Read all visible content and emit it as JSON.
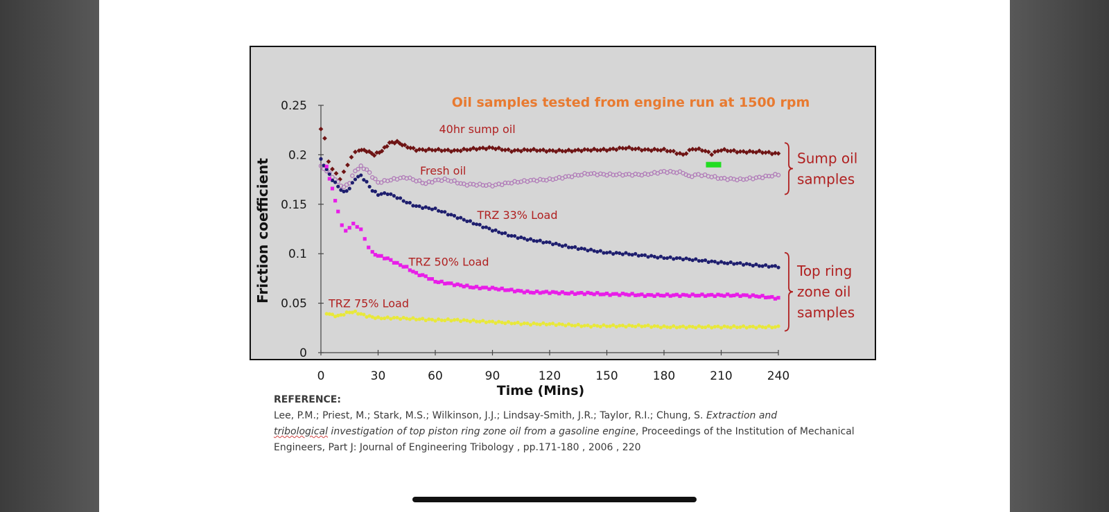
{
  "chart_data": {
    "type": "scatter",
    "title": "Oil samples tested from engine run at 1500 rpm",
    "xlabel": "Time (Mins)",
    "ylabel": "Friction coefficient",
    "xlim": [
      0,
      240
    ],
    "ylim": [
      0,
      0.25
    ],
    "x_ticks": [
      "0",
      "30",
      "60",
      "90",
      "120",
      "150",
      "180",
      "210",
      "240"
    ],
    "y_ticks": [
      "0",
      "0.05",
      "0.1",
      "0.15",
      "0.2",
      "0.25"
    ],
    "grid": false,
    "series": [
      {
        "name": "40hr sump oil",
        "color": "#6e1414",
        "marker": "diamond",
        "points": [
          [
            0,
            0.226
          ],
          [
            2,
            0.216
          ],
          [
            4,
            0.194
          ],
          [
            6,
            0.185
          ],
          [
            8,
            0.181
          ],
          [
            10,
            0.176
          ],
          [
            12,
            0.182
          ],
          [
            14,
            0.19
          ],
          [
            16,
            0.198
          ],
          [
            18,
            0.202
          ],
          [
            20,
            0.205
          ],
          [
            24,
            0.204
          ],
          [
            28,
            0.2
          ],
          [
            32,
            0.204
          ],
          [
            36,
            0.212
          ],
          [
            40,
            0.213
          ],
          [
            44,
            0.209
          ],
          [
            50,
            0.205
          ],
          [
            60,
            0.205
          ],
          [
            70,
            0.204
          ],
          [
            80,
            0.206
          ],
          [
            90,
            0.207
          ],
          [
            100,
            0.204
          ],
          [
            110,
            0.205
          ],
          [
            120,
            0.204
          ],
          [
            130,
            0.204
          ],
          [
            140,
            0.205
          ],
          [
            150,
            0.205
          ],
          [
            160,
            0.207
          ],
          [
            170,
            0.205
          ],
          [
            180,
            0.205
          ],
          [
            185,
            0.203
          ],
          [
            190,
            0.2
          ],
          [
            195,
            0.206
          ],
          [
            200,
            0.205
          ],
          [
            205,
            0.201
          ],
          [
            210,
            0.205
          ],
          [
            220,
            0.203
          ],
          [
            230,
            0.203
          ],
          [
            240,
            0.201
          ]
        ]
      },
      {
        "name": "Fresh oil",
        "color": "#b07ab8",
        "marker": "x",
        "points": [
          [
            0,
            0.188
          ],
          [
            3,
            0.184
          ],
          [
            6,
            0.178
          ],
          [
            9,
            0.172
          ],
          [
            12,
            0.167
          ],
          [
            15,
            0.172
          ],
          [
            18,
            0.184
          ],
          [
            21,
            0.188
          ],
          [
            24,
            0.185
          ],
          [
            27,
            0.178
          ],
          [
            30,
            0.172
          ],
          [
            35,
            0.174
          ],
          [
            40,
            0.176
          ],
          [
            45,
            0.177
          ],
          [
            50,
            0.174
          ],
          [
            55,
            0.171
          ],
          [
            60,
            0.174
          ],
          [
            65,
            0.175
          ],
          [
            70,
            0.173
          ],
          [
            75,
            0.17
          ],
          [
            80,
            0.17
          ],
          [
            90,
            0.169
          ],
          [
            100,
            0.172
          ],
          [
            110,
            0.174
          ],
          [
            120,
            0.175
          ],
          [
            130,
            0.178
          ],
          [
            140,
            0.181
          ],
          [
            150,
            0.18
          ],
          [
            160,
            0.18
          ],
          [
            170,
            0.18
          ],
          [
            180,
            0.183
          ],
          [
            190,
            0.182
          ],
          [
            193,
            0.178
          ],
          [
            198,
            0.18
          ],
          [
            205,
            0.178
          ],
          [
            210,
            0.176
          ],
          [
            220,
            0.175
          ],
          [
            230,
            0.177
          ],
          [
            240,
            0.18
          ]
        ]
      },
      {
        "name": "TRZ 33% Load",
        "color": "#1e1e6e",
        "marker": "circle",
        "points": [
          [
            0,
            0.195
          ],
          [
            3,
            0.185
          ],
          [
            6,
            0.175
          ],
          [
            9,
            0.168
          ],
          [
            12,
            0.162
          ],
          [
            15,
            0.166
          ],
          [
            18,
            0.176
          ],
          [
            21,
            0.179
          ],
          [
            24,
            0.172
          ],
          [
            27,
            0.164
          ],
          [
            30,
            0.16
          ],
          [
            35,
            0.161
          ],
          [
            40,
            0.157
          ],
          [
            45,
            0.152
          ],
          [
            50,
            0.148
          ],
          [
            60,
            0.145
          ],
          [
            70,
            0.138
          ],
          [
            80,
            0.131
          ],
          [
            90,
            0.124
          ],
          [
            100,
            0.118
          ],
          [
            110,
            0.114
          ],
          [
            120,
            0.111
          ],
          [
            130,
            0.107
          ],
          [
            140,
            0.104
          ],
          [
            150,
            0.101
          ],
          [
            160,
            0.1
          ],
          [
            170,
            0.098
          ],
          [
            180,
            0.096
          ],
          [
            190,
            0.095
          ],
          [
            200,
            0.093
          ],
          [
            210,
            0.091
          ],
          [
            220,
            0.09
          ],
          [
            230,
            0.088
          ],
          [
            240,
            0.087
          ]
        ]
      },
      {
        "name": "TRZ 50% Load",
        "color": "#e81ee8",
        "marker": "square",
        "points": [
          [
            3,
            0.188
          ],
          [
            6,
            0.165
          ],
          [
            9,
            0.143
          ],
          [
            11,
            0.128
          ],
          [
            13,
            0.124
          ],
          [
            15,
            0.126
          ],
          [
            17,
            0.13
          ],
          [
            19,
            0.128
          ],
          [
            21,
            0.124
          ],
          [
            23,
            0.115
          ],
          [
            25,
            0.107
          ],
          [
            27,
            0.101
          ],
          [
            30,
            0.098
          ],
          [
            35,
            0.095
          ],
          [
            40,
            0.09
          ],
          [
            45,
            0.086
          ],
          [
            50,
            0.08
          ],
          [
            55,
            0.077
          ],
          [
            60,
            0.072
          ],
          [
            70,
            0.069
          ],
          [
            80,
            0.066
          ],
          [
            90,
            0.065
          ],
          [
            100,
            0.063
          ],
          [
            110,
            0.061
          ],
          [
            120,
            0.061
          ],
          [
            130,
            0.06
          ],
          [
            140,
            0.06
          ],
          [
            150,
            0.059
          ],
          [
            160,
            0.059
          ],
          [
            170,
            0.058
          ],
          [
            180,
            0.058
          ],
          [
            190,
            0.058
          ],
          [
            200,
            0.058
          ],
          [
            210,
            0.058
          ],
          [
            220,
            0.058
          ],
          [
            230,
            0.057
          ],
          [
            240,
            0.055
          ]
        ]
      },
      {
        "name": "TRZ 75% Load",
        "color": "#e8e83a",
        "marker": "circle",
        "points": [
          [
            3,
            0.04
          ],
          [
            6,
            0.038
          ],
          [
            9,
            0.037
          ],
          [
            12,
            0.039
          ],
          [
            15,
            0.041
          ],
          [
            18,
            0.041
          ],
          [
            21,
            0.039
          ],
          [
            24,
            0.037
          ],
          [
            27,
            0.036
          ],
          [
            30,
            0.035
          ],
          [
            40,
            0.035
          ],
          [
            50,
            0.034
          ],
          [
            60,
            0.033
          ],
          [
            70,
            0.033
          ],
          [
            80,
            0.032
          ],
          [
            90,
            0.031
          ],
          [
            100,
            0.03
          ],
          [
            110,
            0.029
          ],
          [
            120,
            0.029
          ],
          [
            130,
            0.028
          ],
          [
            140,
            0.027
          ],
          [
            150,
            0.027
          ],
          [
            160,
            0.027
          ],
          [
            170,
            0.027
          ],
          [
            180,
            0.026
          ],
          [
            190,
            0.026
          ],
          [
            200,
            0.026
          ],
          [
            210,
            0.026
          ],
          [
            220,
            0.026
          ],
          [
            230,
            0.026
          ],
          [
            240,
            0.026
          ]
        ]
      }
    ],
    "series_labels": [
      {
        "text": "40hr sump oil",
        "x": 62,
        "y": 0.222
      },
      {
        "text": "Fresh oil",
        "x": 52,
        "y": 0.18
      },
      {
        "text": "TRZ 33% Load",
        "x": 82,
        "y": 0.135
      },
      {
        "text": "TRZ 50% Load",
        "x": 46,
        "y": 0.088
      },
      {
        "text": "TRZ 75% Load",
        "x": 4,
        "y": 0.046
      }
    ],
    "groups": [
      {
        "label_lines": [
          "Sump oil",
          "samples"
        ],
        "y_top": 0.212,
        "y_bottom": 0.16
      },
      {
        "label_lines": [
          "Top ring",
          "zone oil",
          "samples"
        ],
        "y_top": 0.101,
        "y_bottom": 0.022
      }
    ],
    "highlight": {
      "color": "#22dd22",
      "x0": 202,
      "x1": 210,
      "y": 0.19
    }
  },
  "reference": {
    "heading": "REFERENCE:",
    "authors": "Lee, P.M.; Priest, M.; Stark, M.S.; Wilkinson, J.J.; Lindsay-Smith, J.R.; Taylor, R.I.; Chung, S. ",
    "title_part1": "Extraction and",
    "title_squiggle": "tribological",
    "title_part2": " investigation of top piston ring zone oil from a gasoline engine",
    "journal": ", Proceedings of the Institution of Mechanical Engineers, Part J: Journal of Engineering Tribology , pp.171-180 , 2006 , 220"
  },
  "colors": {
    "title": "#e87a30",
    "labels": "#b02020",
    "plot_bg": "#d6d6d6",
    "axis_text": "#1a1a1a"
  }
}
